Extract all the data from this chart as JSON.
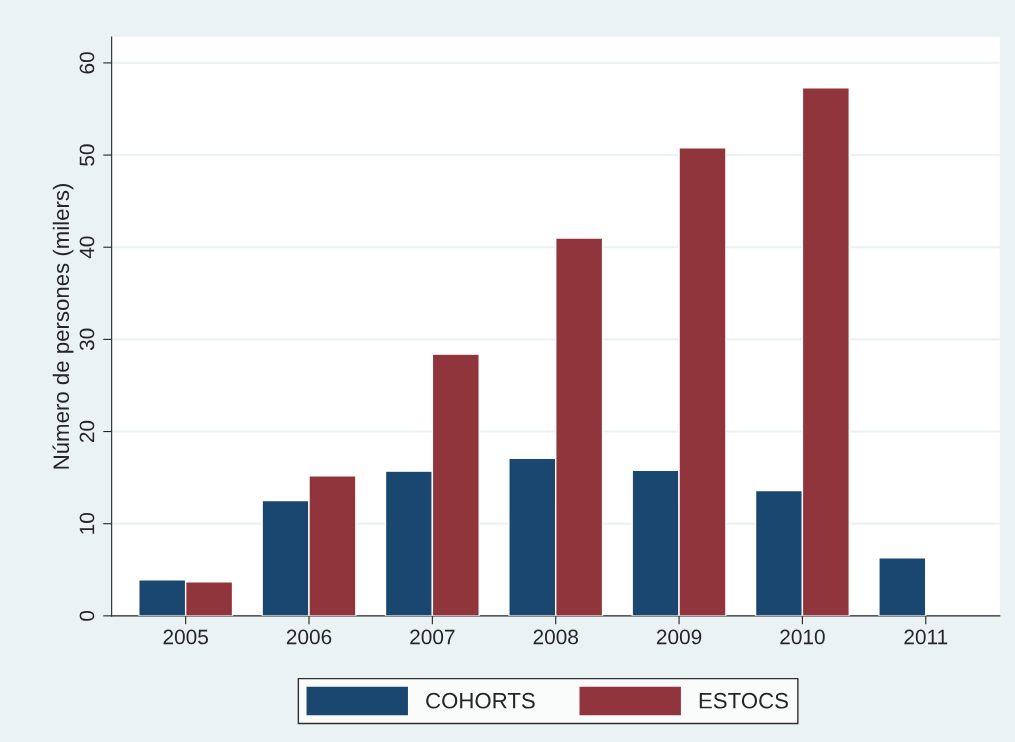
{
  "chart_data": {
    "type": "bar",
    "ylabel": "Número de persones (milers)",
    "categories": [
      "2005",
      "2006",
      "2007",
      "2008",
      "2009",
      "2010",
      "2011"
    ],
    "series": [
      {
        "name": "COHORTS",
        "color": "#1a476f",
        "values": [
          3.9,
          12.5,
          15.7,
          17.1,
          15.8,
          13.6,
          6.3
        ]
      },
      {
        "name": "ESTOCS",
        "color": "#90353b",
        "values": [
          3.7,
          15.2,
          28.4,
          41.0,
          50.8,
          57.3,
          null
        ]
      }
    ],
    "ylim": [
      0,
      62.8
    ],
    "yticks": [
      0,
      10,
      20,
      30,
      40,
      50,
      60
    ],
    "grid": "y",
    "legend": "bottom"
  }
}
